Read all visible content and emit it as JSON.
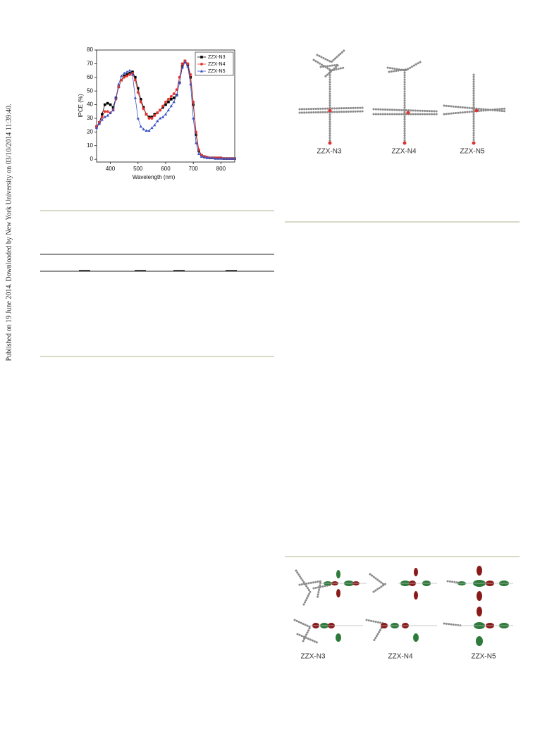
{
  "side_note": "Published on 19 June 2014. Downloaded by New York University on 03/10/2014 11:39:40.",
  "chart_data": {
    "type": "line",
    "x_label": "Wavelength (nm)",
    "y_label": "IPCE (%)",
    "x": [
      350,
      360,
      370,
      380,
      390,
      400,
      410,
      420,
      430,
      440,
      450,
      460,
      470,
      480,
      490,
      500,
      510,
      520,
      530,
      540,
      550,
      560,
      570,
      580,
      590,
      600,
      610,
      620,
      630,
      640,
      650,
      660,
      670,
      680,
      690,
      700,
      710,
      720,
      730,
      740,
      750,
      760,
      770,
      780,
      790,
      800,
      810,
      820,
      830,
      840,
      850
    ],
    "series": [
      {
        "name": "ZZX-N3",
        "color": "#000000",
        "marker": "square",
        "values": [
          24,
          27,
          33,
          40,
          41,
          40,
          38,
          45,
          53,
          58,
          61,
          62,
          63,
          64,
          60,
          52,
          44,
          38,
          33,
          31,
          31,
          33,
          34,
          36,
          38,
          40,
          42,
          44,
          45,
          47,
          56,
          68,
          72,
          69,
          60,
          40,
          18,
          6,
          3,
          2,
          1.5,
          1,
          1,
          1,
          1,
          1,
          0.5,
          0.5,
          0.5,
          0.5,
          0.5
        ]
      },
      {
        "name": "ZZX-N4",
        "color": "#e8312b",
        "marker": "circle",
        "values": [
          24,
          27,
          31,
          35,
          35,
          34,
          36,
          44,
          53,
          58,
          60,
          61,
          62,
          63,
          58,
          49,
          42,
          37,
          33,
          30,
          30,
          32,
          34,
          36,
          39,
          42,
          44,
          46,
          48,
          51,
          60,
          70,
          72,
          70,
          62,
          42,
          20,
          7,
          3,
          2,
          1.5,
          1,
          1,
          1,
          1,
          1,
          0.5,
          0.5,
          0.5,
          0.5,
          0.5
        ]
      },
      {
        "name": "ZZX-N5",
        "color": "#3a52c4",
        "marker": "triangle",
        "values": [
          23,
          26,
          29,
          31,
          32,
          34,
          36,
          45,
          55,
          61,
          63,
          64,
          65,
          62,
          45,
          30,
          24,
          22,
          21,
          21,
          23,
          25,
          28,
          30,
          31,
          33,
          36,
          39,
          42,
          47,
          56,
          67,
          71,
          68,
          55,
          30,
          12,
          4,
          2,
          1.5,
          1,
          1,
          1,
          0.5,
          0.5,
          0.5,
          0.5,
          0.5,
          0.5,
          0.5,
          0.5
        ]
      }
    ],
    "xlim": [
      350,
      850
    ],
    "xticks": [
      400,
      500,
      600,
      700,
      800
    ],
    "ylim": [
      -2,
      80
    ],
    "yticks": [
      0,
      10,
      20,
      30,
      40,
      50,
      60,
      70,
      80
    ],
    "legend": "upper right"
  },
  "figure_structures": {
    "labels": [
      "ZZX-N3",
      "ZZX-N4",
      "ZZX-N5"
    ]
  },
  "figure_orbitals": {
    "labels": [
      "ZZX-N3",
      "ZZX-N4",
      "ZZX-N5"
    ]
  }
}
